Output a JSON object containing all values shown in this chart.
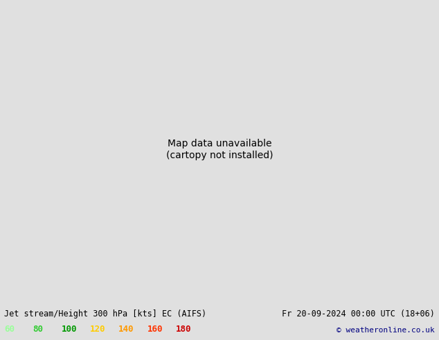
{
  "title_left": "Jet stream/Height 300 hPa [kts] EC (AIFS)",
  "title_right": "Fr 20-09-2024 00:00 UTC (18+06)",
  "copyright": "© weatheronline.co.uk",
  "legend_values": [
    60,
    80,
    100,
    120,
    140,
    160,
    180
  ],
  "legend_colors": [
    "#99ff99",
    "#33cc33",
    "#009900",
    "#ffcc00",
    "#ff9900",
    "#ff3300",
    "#cc0000"
  ],
  "background_color": "#e8e8e8",
  "map_background": "#f0f0f0",
  "land_color": "#c8e6a0",
  "ocean_color": "#d0e8f0",
  "contour_color": "#000000",
  "fig_width": 6.34,
  "fig_height": 4.9,
  "dpi": 100
}
